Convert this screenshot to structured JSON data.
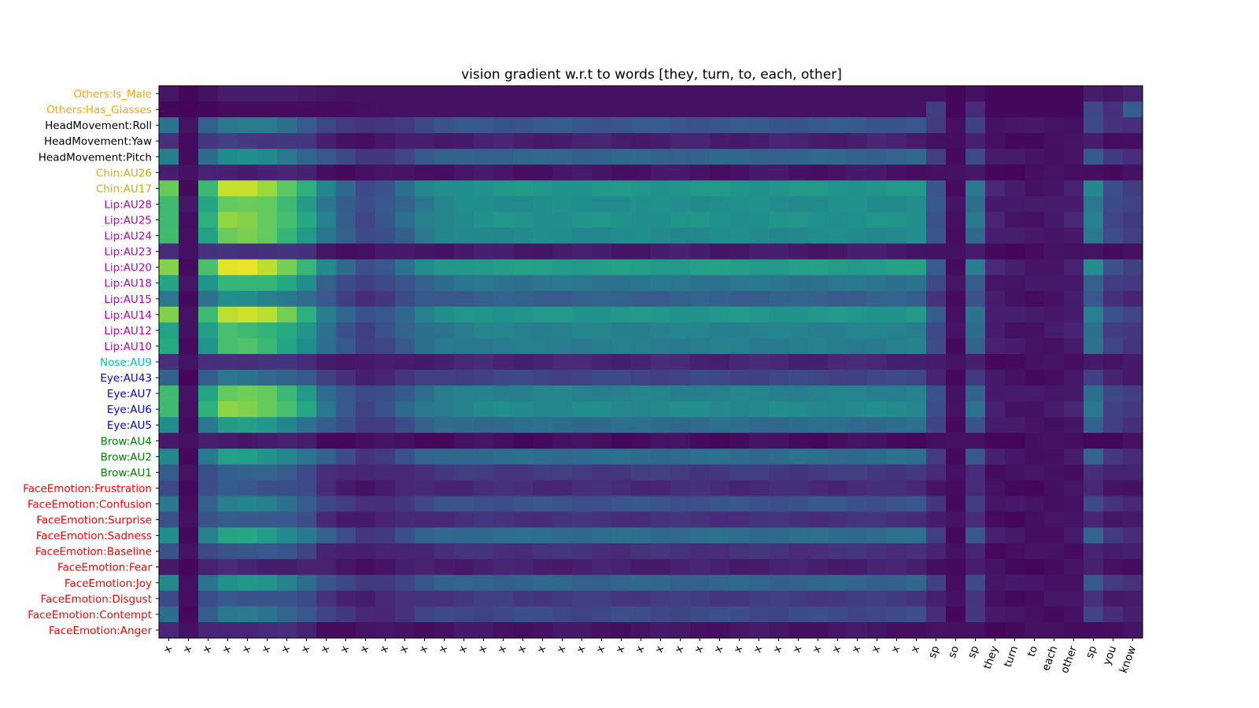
{
  "chart_data": {
    "type": "heatmap",
    "title": "vision gradient w.r.t to words [they, turn, to, each, other]",
    "colormap": "viridis",
    "value_range": [
      0,
      1
    ],
    "rows": [
      {
        "label": "Others:Is_Male",
        "color": "#ffa500"
      },
      {
        "label": "Others:Has_Glasses",
        "color": "#ffa500"
      },
      {
        "label": "HeadMovement:Roll",
        "color": "#000000"
      },
      {
        "label": "HeadMovement:Yaw",
        "color": "#000000"
      },
      {
        "label": "HeadMovement:Pitch",
        "color": "#000000"
      },
      {
        "label": "Chin:AU26",
        "color": "#c8b400"
      },
      {
        "label": "Chin:AU17",
        "color": "#c8b400"
      },
      {
        "label": "Lip:AU28",
        "color": "#c000c0"
      },
      {
        "label": "Lip:AU25",
        "color": "#c000c0"
      },
      {
        "label": "Lip:AU24",
        "color": "#c000c0"
      },
      {
        "label": "Lip:AU23",
        "color": "#c000c0"
      },
      {
        "label": "Lip:AU20",
        "color": "#c000c0"
      },
      {
        "label": "Lip:AU18",
        "color": "#c000c0"
      },
      {
        "label": "Lip:AU15",
        "color": "#c000c0"
      },
      {
        "label": "Lip:AU14",
        "color": "#c000c0"
      },
      {
        "label": "Lip:AU12",
        "color": "#c000c0"
      },
      {
        "label": "Lip:AU10",
        "color": "#c000c0"
      },
      {
        "label": "Nose:AU9",
        "color": "#00bfbf"
      },
      {
        "label": "Eye:AU43",
        "color": "#0000ff"
      },
      {
        "label": "Eye:AU7",
        "color": "#0000ff"
      },
      {
        "label": "Eye:AU6",
        "color": "#0000ff"
      },
      {
        "label": "Eye:AU5",
        "color": "#0000ff"
      },
      {
        "label": "Brow:AU4",
        "color": "#008000"
      },
      {
        "label": "Brow:AU2",
        "color": "#008000"
      },
      {
        "label": "Brow:AU1",
        "color": "#008000"
      },
      {
        "label": "FaceEmotion:Frustration",
        "color": "#ff0000"
      },
      {
        "label": "FaceEmotion:Confusion",
        "color": "#ff0000"
      },
      {
        "label": "FaceEmotion:Surprise",
        "color": "#ff0000"
      },
      {
        "label": "FaceEmotion:Sadness",
        "color": "#ff0000"
      },
      {
        "label": "FaceEmotion:Baseline",
        "color": "#ff0000"
      },
      {
        "label": "FaceEmotion:Fear",
        "color": "#ff0000"
      },
      {
        "label": "FaceEmotion:Joy",
        "color": "#ff0000"
      },
      {
        "label": "FaceEmotion:Disgust",
        "color": "#ff0000"
      },
      {
        "label": "FaceEmotion:Contempt",
        "color": "#ff0000"
      },
      {
        "label": "FaceEmotion:Anger",
        "color": "#ff0000"
      }
    ],
    "columns": [
      "x",
      "x",
      "x",
      "x",
      "x",
      "x",
      "x",
      "x",
      "x",
      "x",
      "x",
      "x",
      "x",
      "x",
      "x",
      "x",
      "x",
      "x",
      "x",
      "x",
      "x",
      "x",
      "x",
      "x",
      "x",
      "x",
      "x",
      "x",
      "x",
      "x",
      "x",
      "x",
      "x",
      "x",
      "x",
      "x",
      "x",
      "x",
      "x",
      "sp",
      "so",
      "sp",
      "they",
      "turn",
      "to",
      "each",
      "other",
      "sp",
      "you",
      "know"
    ],
    "column_profile": [
      0.85,
      0.02,
      0.75,
      1.0,
      1.0,
      0.95,
      0.85,
      0.7,
      0.5,
      0.35,
      0.25,
      0.3,
      0.4,
      0.5,
      0.55,
      0.58,
      0.6,
      0.6,
      0.6,
      0.6,
      0.6,
      0.6,
      0.6,
      0.6,
      0.6,
      0.6,
      0.6,
      0.6,
      0.6,
      0.6,
      0.6,
      0.6,
      0.6,
      0.6,
      0.6,
      0.6,
      0.6,
      0.6,
      0.6,
      0.3,
      0.02,
      0.45,
      0.08,
      0.05,
      0.04,
      0.05,
      0.08,
      0.5,
      0.25,
      0.2
    ],
    "row_intensity": [
      0.06,
      0.03,
      0.32,
      0.1,
      0.38,
      0.06,
      0.62,
      0.58,
      0.6,
      0.56,
      0.08,
      0.66,
      0.46,
      0.36,
      0.62,
      0.52,
      0.5,
      0.12,
      0.24,
      0.52,
      0.56,
      0.42,
      0.04,
      0.42,
      0.2,
      0.14,
      0.3,
      0.16,
      0.42,
      0.16,
      0.1,
      0.38,
      0.2,
      0.26,
      0.06
    ],
    "peak_row_intensity": [
      0.1,
      0.08,
      0.42,
      0.18,
      0.48,
      0.1,
      0.9,
      0.78,
      0.82,
      0.78,
      0.15,
      0.95,
      0.68,
      0.48,
      0.92,
      0.7,
      0.7,
      0.15,
      0.38,
      0.78,
      0.82,
      0.55,
      0.08,
      0.55,
      0.32,
      0.28,
      0.44,
      0.3,
      0.58,
      0.28,
      0.1,
      0.52,
      0.28,
      0.4,
      0.12
    ],
    "pixel_array": [
      [
        0.06,
        0.02,
        0.05,
        0.08,
        0.08,
        0.08,
        0.08,
        0.07,
        0.06,
        0.05,
        0.05,
        0.05,
        0.05,
        0.05,
        0.05,
        0.05,
        0.05,
        0.05,
        0.05,
        0.05,
        0.05,
        0.05,
        0.05,
        0.05,
        0.05,
        0.05,
        0.05,
        0.05,
        0.05,
        0.05,
        0.05,
        0.05,
        0.05,
        0.05,
        0.05,
        0.05,
        0.05,
        0.05,
        0.05,
        0.05,
        0.02,
        0.05,
        0.02,
        0.02,
        0.02,
        0.02,
        0.02,
        0.08,
        0.06,
        0.1
      ],
      [
        0.02,
        0.01,
        0.02,
        0.03,
        0.03,
        0.03,
        0.03,
        0.03,
        0.03,
        0.03,
        0.04,
        0.05,
        0.05,
        0.05,
        0.05,
        0.05,
        0.05,
        0.05,
        0.05,
        0.05,
        0.05,
        0.05,
        0.05,
        0.05,
        0.05,
        0.05,
        0.05,
        0.05,
        0.05,
        0.05,
        0.05,
        0.05,
        0.05,
        0.05,
        0.05,
        0.05,
        0.05,
        0.05,
        0.05,
        0.18,
        0.02,
        0.12,
        0.02,
        0.02,
        0.02,
        0.02,
        0.02,
        0.22,
        0.14,
        0.3
      ]
    ]
  }
}
